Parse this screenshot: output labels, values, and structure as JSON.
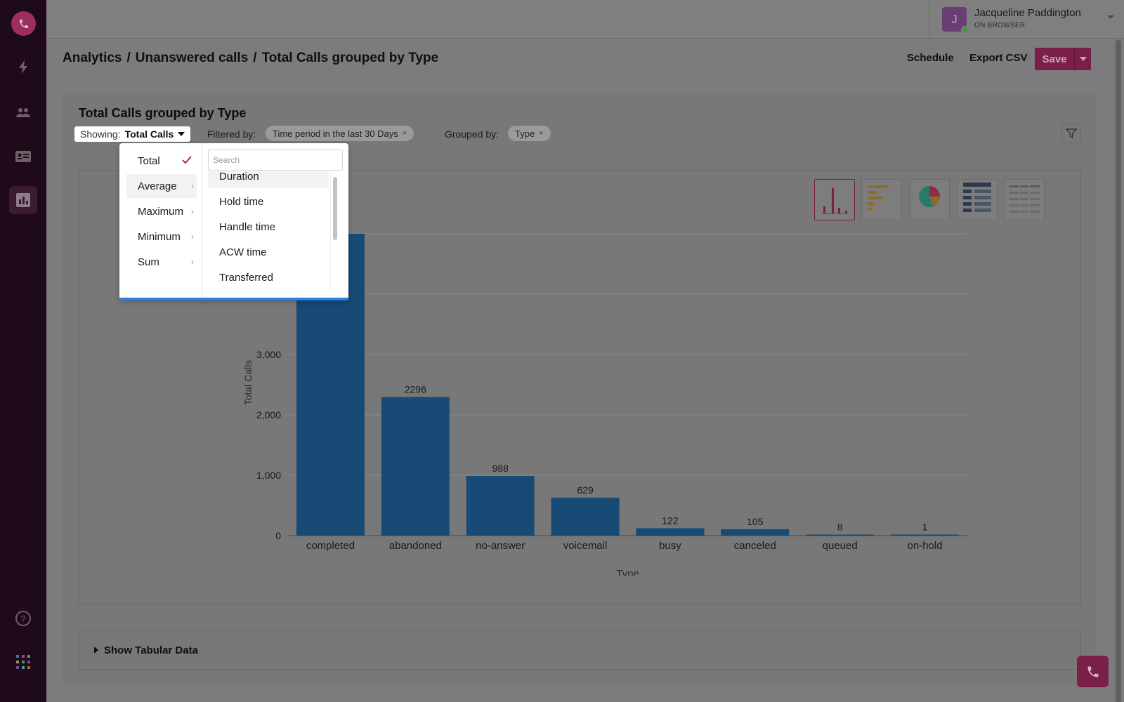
{
  "sidebar": {
    "logo": "phone-logo",
    "items": [
      {
        "name": "lightning-icon"
      },
      {
        "name": "people-icon"
      },
      {
        "name": "contact-card-icon"
      },
      {
        "name": "analytics-icon",
        "active": true
      }
    ],
    "bottom": [
      {
        "name": "help-icon"
      },
      {
        "name": "apps-grid-icon"
      }
    ]
  },
  "user": {
    "initial": "J",
    "name": "Jacqueline Paddington",
    "status": "ON BROWSER"
  },
  "breadcrumb": {
    "parts": [
      "Analytics",
      "/",
      "Unanswered calls",
      "/",
      "Total Calls grouped by Type"
    ]
  },
  "header_actions": {
    "schedule": "Schedule",
    "export": "Export CSV",
    "save": "Save"
  },
  "report": {
    "title": "Total Calls grouped by Type",
    "showing_label": "Showing:",
    "showing_value": "Total Calls",
    "filtered_label": "Filtered by:",
    "filter_chip": "Time period in the last 30 Days",
    "grouped_label": "Grouped by:",
    "group_chip": "Type",
    "chip_remove": "×"
  },
  "tabular": {
    "label": "Show Tabular Data"
  },
  "dropdown": {
    "aggregations": [
      "Total",
      "Average",
      "Maximum",
      "Minimum",
      "Sum"
    ],
    "selected": "Total",
    "search_placeholder": "Search",
    "fields": [
      "Duration",
      "Hold time",
      "Handle time",
      "ACW time",
      "Transferred"
    ]
  },
  "colors": {
    "accent": "#9c2f5f",
    "bar": "#174a75"
  },
  "chart_data": {
    "type": "bar",
    "categories": [
      "completed",
      "abandoned",
      "no-answer",
      "voicemail",
      "busy",
      "canceled",
      "queued",
      "on-hold"
    ],
    "values": [
      5000,
      2296,
      988,
      629,
      122,
      105,
      8,
      1
    ],
    "data_labels": [
      "",
      "2296",
      "988",
      "629",
      "122",
      "105",
      "8",
      "1"
    ],
    "xlabel": "Type",
    "ylabel": "Total Calls",
    "yticks": [
      0,
      1000,
      2000,
      3000
    ],
    "ytick_labels": [
      "0",
      "1,000",
      "2,000",
      "3,000"
    ],
    "ylim": [
      0,
      5000
    ],
    "grid": true
  }
}
